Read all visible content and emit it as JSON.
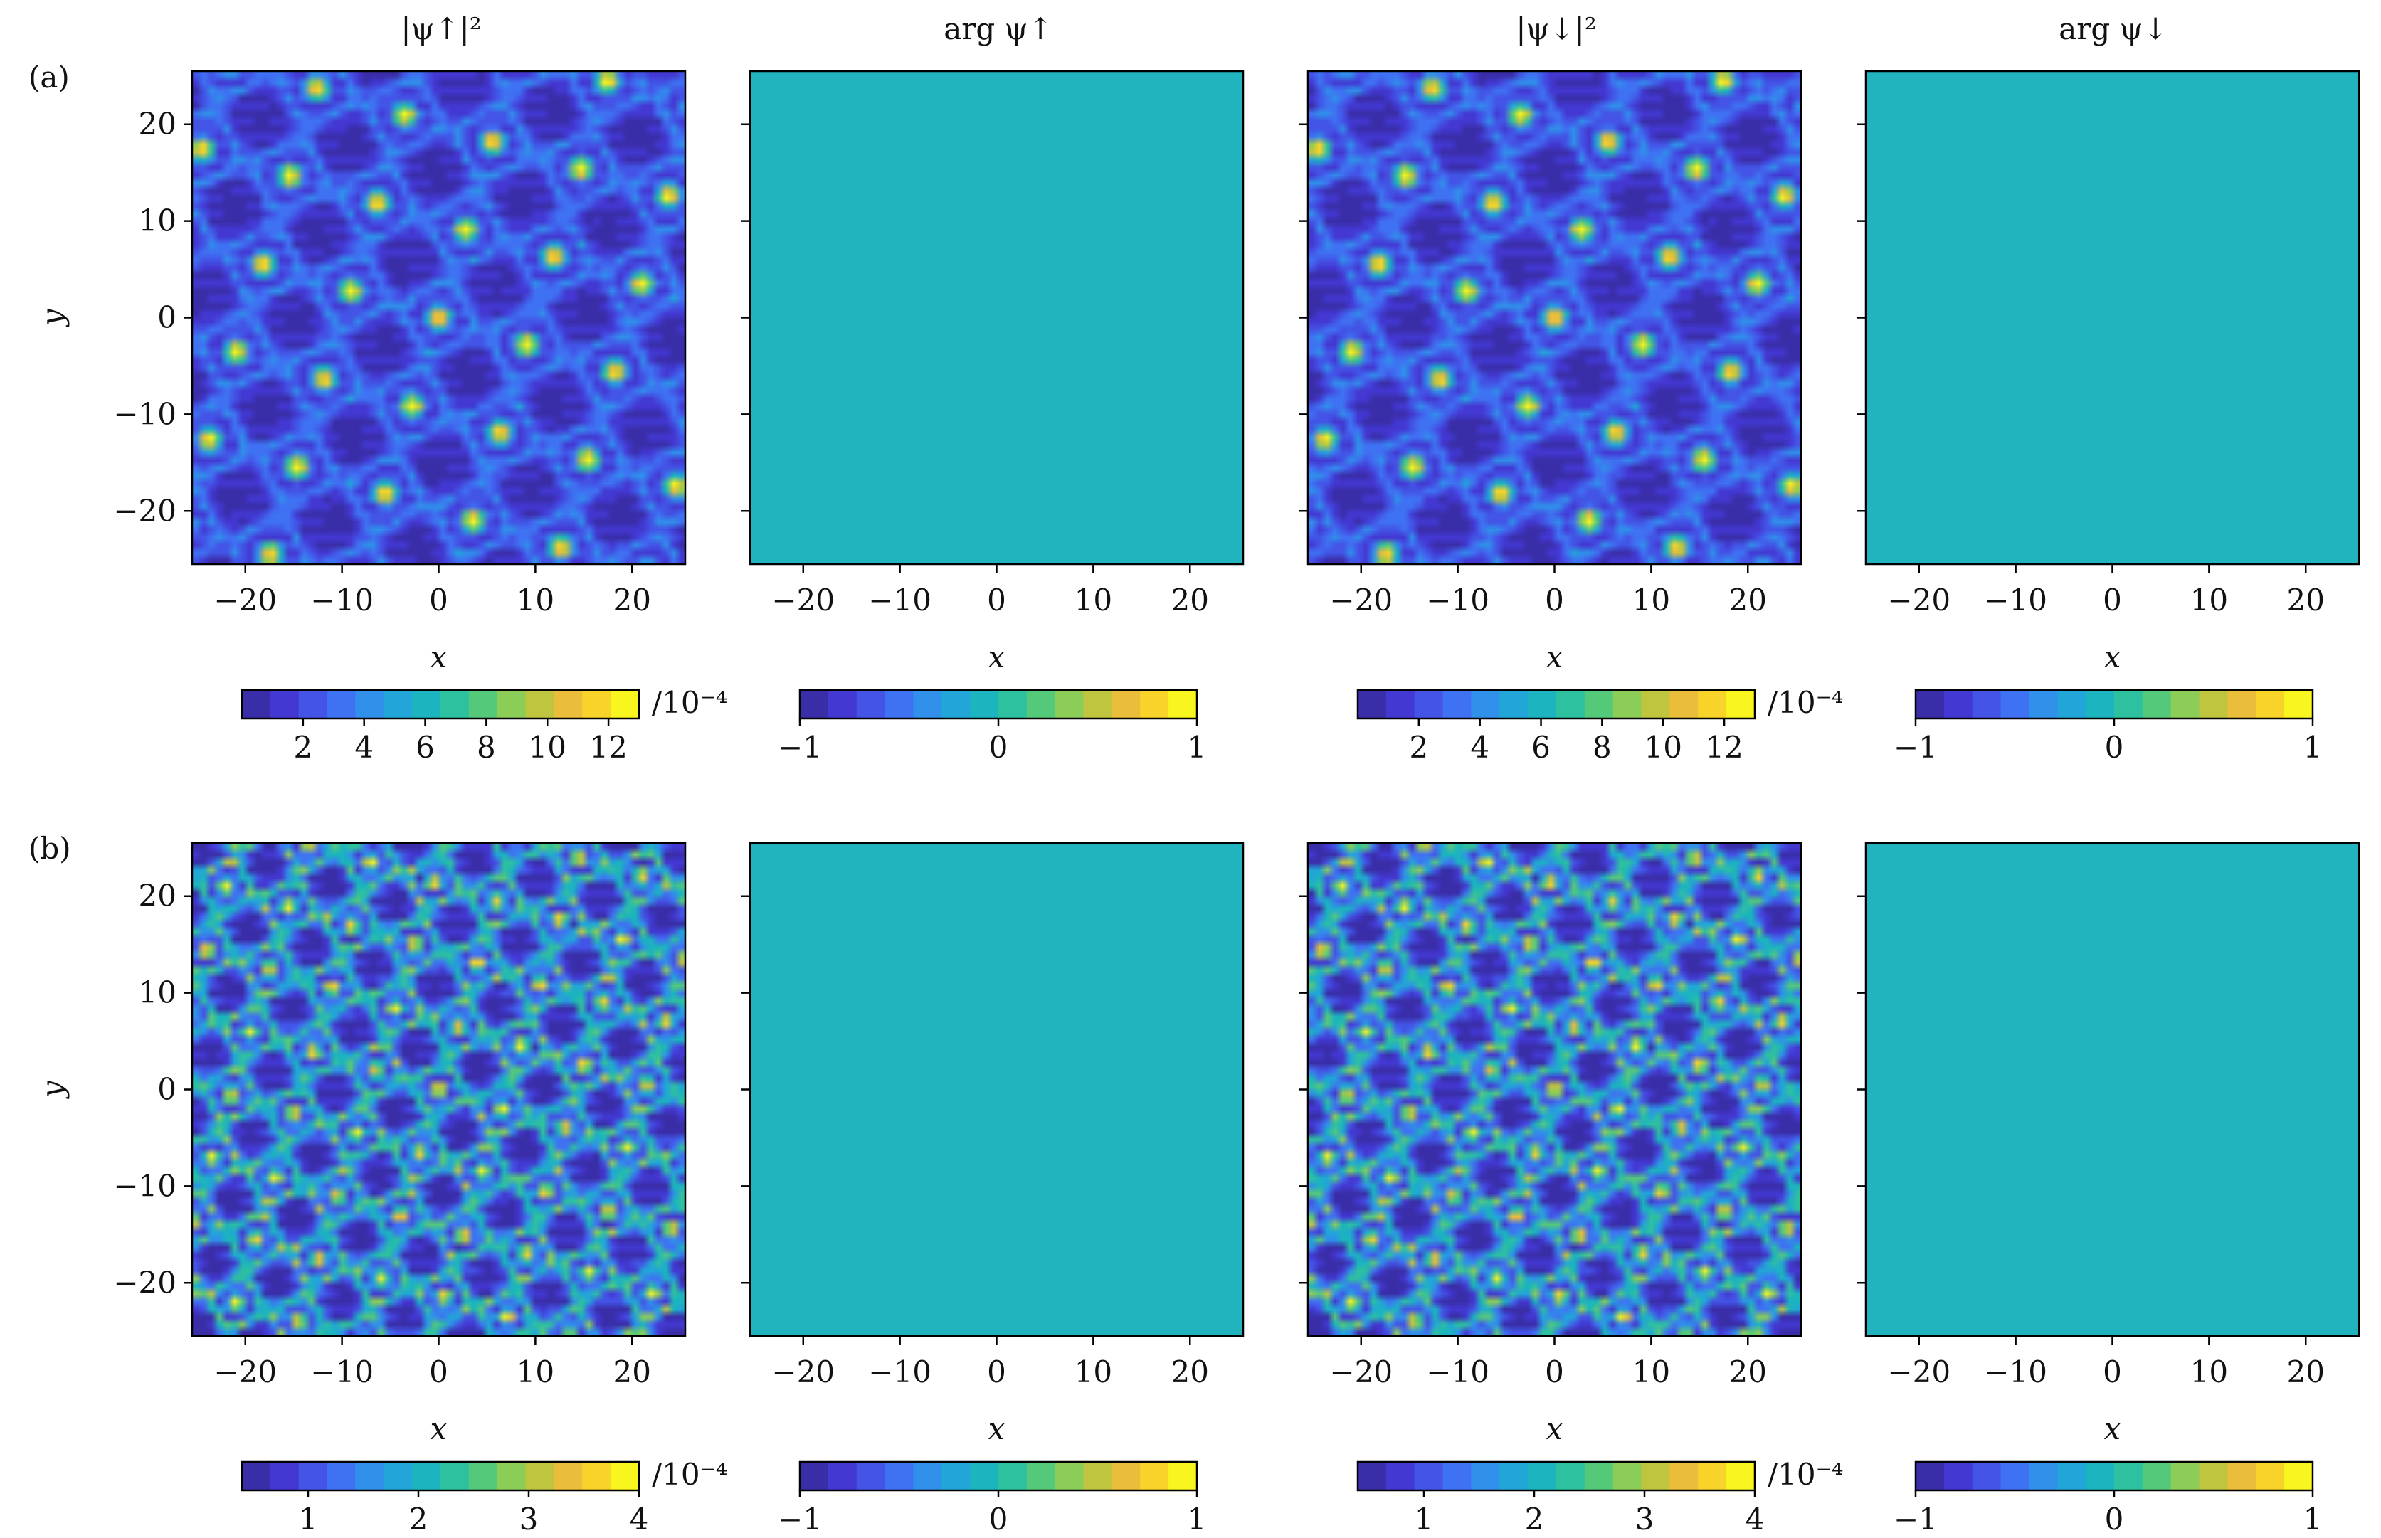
{
  "figure": {
    "row_labels": [
      "(a)",
      "(b)"
    ],
    "column_titles": [
      "|ψ↑|²",
      "arg ψ↑",
      "|ψ↓|²",
      "arg ψ↓"
    ],
    "xlabel": "x",
    "ylabel": "y",
    "colorbar_unit": "/10⁻⁴"
  },
  "colors": {
    "phase_fill": "#21b4be",
    "colormap": [
      "#3a2ea8",
      "#4338d2",
      "#4354e6",
      "#3f72f2",
      "#3090ea",
      "#22a6d8",
      "#1cb4be",
      "#2ec19f",
      "#55c97a",
      "#8ccd57",
      "#c0c540",
      "#eabd3a",
      "#f8d42a",
      "#f9f51e"
    ]
  },
  "chart_data": [
    {
      "type": "heatmap",
      "id": "a-up-density",
      "row": "(a)",
      "title": "|ψ↑|²",
      "xlabel": "x",
      "ylabel": "y",
      "xlim": [
        -25.5,
        25.5
      ],
      "ylim": [
        25.5,
        -25.5
      ],
      "xticks": [
        -20,
        -10,
        0,
        10,
        20
      ],
      "yticks": [
        -20,
        -10,
        0,
        10,
        20
      ],
      "xtick_labels": [
        "−20",
        "−10",
        "0",
        "10",
        "20"
      ],
      "ytick_labels": [
        "−20",
        "−10",
        "0",
        "10",
        "20"
      ],
      "colorbar": {
        "min": 0,
        "max": 13,
        "ticks": [
          2,
          4,
          6,
          8,
          10,
          12
        ],
        "tick_labels": [
          "2",
          "4",
          "6",
          "8",
          "10",
          "12"
        ],
        "unit": "/10⁻⁴"
      },
      "pattern": {
        "period": 9.5,
        "rotation_deg": -17,
        "background": 0.9,
        "ring_level": 4.2,
        "peak": 13.0
      }
    },
    {
      "type": "heatmap",
      "id": "a-up-phase",
      "row": "(a)",
      "title": "arg ψ↑",
      "xlabel": "x",
      "xlim": [
        -25.5,
        25.5
      ],
      "ylim": [
        25.5,
        -25.5
      ],
      "xticks": [
        -20,
        -10,
        0,
        10,
        20
      ],
      "xtick_labels": [
        "−20",
        "−10",
        "0",
        "10",
        "20"
      ],
      "colorbar": {
        "min": -1,
        "max": 1,
        "ticks": [
          -1,
          0,
          1
        ],
        "tick_labels": [
          "−1",
          "0",
          "1"
        ]
      },
      "uniform_value": 0
    },
    {
      "type": "heatmap",
      "id": "a-down-density",
      "row": "(a)",
      "title": "|ψ↓|²",
      "xlabel": "x",
      "xlim": [
        -25.5,
        25.5
      ],
      "ylim": [
        25.5,
        -25.5
      ],
      "xticks": [
        -20,
        -10,
        0,
        10,
        20
      ],
      "xtick_labels": [
        "−20",
        "−10",
        "0",
        "10",
        "20"
      ],
      "colorbar": {
        "min": 0,
        "max": 13,
        "ticks": [
          2,
          4,
          6,
          8,
          10,
          12
        ],
        "tick_labels": [
          "2",
          "4",
          "6",
          "8",
          "10",
          "12"
        ],
        "unit": "/10⁻⁴"
      },
      "pattern": {
        "period": 9.5,
        "rotation_deg": -17,
        "background": 0.9,
        "ring_level": 4.2,
        "peak": 13.0
      }
    },
    {
      "type": "heatmap",
      "id": "a-down-phase",
      "row": "(a)",
      "title": "arg ψ↓",
      "xlabel": "x",
      "xlim": [
        -25.5,
        25.5
      ],
      "ylim": [
        25.5,
        -25.5
      ],
      "xticks": [
        -20,
        -10,
        0,
        10,
        20
      ],
      "xtick_labels": [
        "−20",
        "−10",
        "0",
        "10",
        "20"
      ],
      "colorbar": {
        "min": -1,
        "max": 1,
        "ticks": [
          -1,
          0,
          1
        ],
        "tick_labels": [
          "−1",
          "0",
          "1"
        ]
      },
      "uniform_value": 0
    },
    {
      "type": "heatmap",
      "id": "b-up-density",
      "row": "(b)",
      "xlabel": "x",
      "ylabel": "y",
      "xlim": [
        -25.5,
        25.5
      ],
      "ylim": [
        25.5,
        -25.5
      ],
      "xticks": [
        -20,
        -10,
        0,
        10,
        20
      ],
      "yticks": [
        -20,
        -10,
        0,
        10,
        20
      ],
      "xtick_labels": [
        "−20",
        "−10",
        "0",
        "10",
        "20"
      ],
      "ytick_labels": [
        "−20",
        "−10",
        "0",
        "10",
        "20"
      ],
      "colorbar": {
        "min": 0.4,
        "max": 4.0,
        "ticks": [
          1,
          2,
          3,
          4
        ],
        "tick_labels": [
          "1",
          "2",
          "3",
          "4"
        ],
        "unit": "/10⁻⁴"
      },
      "pattern": {
        "period": 6.8,
        "rotation_deg": -17,
        "background": 0.7,
        "ring_level": 2.8,
        "peak": 4.0
      }
    },
    {
      "type": "heatmap",
      "id": "b-up-phase",
      "row": "(b)",
      "xlabel": "x",
      "xlim": [
        -25.5,
        25.5
      ],
      "ylim": [
        25.5,
        -25.5
      ],
      "xticks": [
        -20,
        -10,
        0,
        10,
        20
      ],
      "xtick_labels": [
        "−20",
        "−10",
        "0",
        "10",
        "20"
      ],
      "colorbar": {
        "min": -1,
        "max": 1,
        "ticks": [
          -1,
          0,
          1
        ],
        "tick_labels": [
          "−1",
          "0",
          "1"
        ]
      },
      "uniform_value": 0
    },
    {
      "type": "heatmap",
      "id": "b-down-density",
      "row": "(b)",
      "xlabel": "x",
      "xlim": [
        -25.5,
        25.5
      ],
      "ylim": [
        25.5,
        -25.5
      ],
      "xticks": [
        -20,
        -10,
        0,
        10,
        20
      ],
      "xtick_labels": [
        "−20",
        "−10",
        "0",
        "10",
        "20"
      ],
      "colorbar": {
        "min": 0.4,
        "max": 4.0,
        "ticks": [
          1,
          2,
          3,
          4
        ],
        "tick_labels": [
          "1",
          "2",
          "3",
          "4"
        ],
        "unit": "/10⁻⁴"
      },
      "pattern": {
        "period": 6.8,
        "rotation_deg": -17,
        "background": 0.7,
        "ring_level": 2.8,
        "peak": 4.0
      }
    },
    {
      "type": "heatmap",
      "id": "b-down-phase",
      "row": "(b)",
      "xlabel": "x",
      "xlim": [
        -25.5,
        25.5
      ],
      "ylim": [
        25.5,
        -25.5
      ],
      "xticks": [
        -20,
        -10,
        0,
        10,
        20
      ],
      "xtick_labels": [
        "−20",
        "−10",
        "0",
        "10",
        "20"
      ],
      "colorbar": {
        "min": -1,
        "max": 1,
        "ticks": [
          -1,
          0,
          1
        ],
        "tick_labels": [
          "−1",
          "0",
          "1"
        ]
      },
      "uniform_value": 0
    }
  ]
}
